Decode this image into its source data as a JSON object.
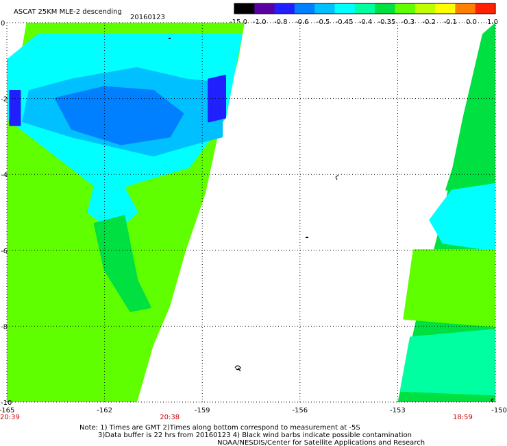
{
  "header": {
    "title": "ASCAT 25KM MLE-2 descending",
    "date": "20160123"
  },
  "colorbar": {
    "labels": [
      "-15.0",
      "-1.0",
      "-0.8",
      "-0.6",
      "-0.5",
      "-0.45",
      "-0.4",
      "-0.35",
      "-0.3",
      "-0.2",
      "-0.1",
      "0.0",
      "1.0"
    ],
    "colors": [
      "#000000",
      "#5a00a0",
      "#2020ff",
      "#0080ff",
      "#00c0ff",
      "#00ffff",
      "#00ffa0",
      "#00e040",
      "#60ff00",
      "#c0ff00",
      "#ffff00",
      "#ff8000",
      "#ff2000"
    ]
  },
  "chart_data": {
    "type": "heatmap",
    "title": "ASCAT 25KM MLE-2 descending",
    "date": "20160123",
    "x_ticks": [
      "-165",
      "-162",
      "-159",
      "-156",
      "-153",
      "-150"
    ],
    "y_ticks": [
      "0",
      "-2",
      "-4",
      "-6",
      "-8",
      "-10"
    ],
    "xlim": [
      -165,
      -150
    ],
    "ylim": [
      -10,
      0
    ],
    "grid": true,
    "time_labels": [
      {
        "lon": -165,
        "text": "20:39"
      },
      {
        "lon": -160,
        "text": "20:38"
      },
      {
        "lon": -151,
        "text": "18:59"
      }
    ],
    "swaths": [
      {
        "name": "west",
        "polygon": [
          [
            -164.4,
            0
          ],
          [
            -157.7,
            0
          ],
          [
            -157.9,
            -1.0
          ],
          [
            -158.4,
            -2.5
          ],
          [
            -158.9,
            -4.5
          ],
          [
            -159.5,
            -6.0
          ],
          [
            -160.0,
            -7.5
          ],
          [
            -160.5,
            -8.5
          ],
          [
            -161.0,
            -10.0
          ],
          [
            -165,
            -10.0
          ],
          [
            -165,
            -2.0
          ],
          [
            -164.6,
            -1.0
          ]
        ],
        "base_value": -0.3,
        "regions": [
          {
            "polygon": [
              [
                -164.0,
                -0.3
              ],
              [
                -157.8,
                -0.3
              ],
              [
                -158.3,
                -2.5
              ],
              [
                -159.4,
                -3.8
              ],
              [
                -161.0,
                -4.2
              ],
              [
                -162.0,
                -4.5
              ],
              [
                -163.5,
                -3.5
              ],
              [
                -165,
                -2.5
              ],
              [
                -165,
                -1.0
              ]
            ],
            "value": -0.45
          },
          {
            "polygon": [
              [
                -164.3,
                -1.8
              ],
              [
                -163.0,
                -1.5
              ],
              [
                -161.0,
                -1.2
              ],
              [
                -159.5,
                -1.5
              ],
              [
                -158.4,
                -1.6
              ],
              [
                -158.4,
                -3.0
              ],
              [
                -159.3,
                -3.2
              ],
              [
                -160.5,
                -3.5
              ],
              [
                -162.0,
                -3.2
              ],
              [
                -163.0,
                -3.0
              ],
              [
                -164.5,
                -2.6
              ]
            ],
            "value": -0.5
          },
          {
            "polygon": [
              [
                -163.5,
                -2.0
              ],
              [
                -162.0,
                -1.7
              ],
              [
                -160.5,
                -1.8
              ],
              [
                -159.6,
                -2.4
              ],
              [
                -160.0,
                -3.0
              ],
              [
                -161.5,
                -3.2
              ],
              [
                -163.0,
                -2.8
              ]
            ],
            "value": -0.6
          },
          {
            "polygon": [
              [
                -158.8,
                -1.5
              ],
              [
                -158.3,
                -1.4
              ],
              [
                -158.3,
                -2.5
              ],
              [
                -158.8,
                -2.6
              ]
            ],
            "value": -0.8
          },
          {
            "polygon": [
              [
                -164.9,
                -1.8
              ],
              [
                -164.6,
                -1.8
              ],
              [
                -164.6,
                -2.7
              ],
              [
                -164.9,
                -2.7
              ]
            ],
            "value": -0.8
          },
          {
            "polygon": [
              [
                -162.3,
                -4.3
              ],
              [
                -161.5,
                -4.2
              ],
              [
                -161.0,
                -5.0
              ],
              [
                -161.7,
                -5.5
              ],
              [
                -162.5,
                -5.0
              ]
            ],
            "value": -0.45
          },
          {
            "polygon": [
              [
                -162.3,
                -5.3
              ],
              [
                -161.4,
                -5.1
              ],
              [
                -161.0,
                -6.8
              ],
              [
                -160.6,
                -7.5
              ],
              [
                -161.2,
                -7.6
              ],
              [
                -162.0,
                -6.5
              ]
            ],
            "value": -0.35
          }
        ]
      },
      {
        "name": "east",
        "polygon": [
          [
            -150.4,
            -0.3
          ],
          [
            -150.0,
            0
          ],
          [
            -150.0,
            -10.0
          ],
          [
            -153.0,
            -10.0
          ],
          [
            -152.4,
            -7.7
          ],
          [
            -151.6,
            -5.0
          ],
          [
            -151.0,
            -2.5
          ]
        ],
        "base_value": -0.35,
        "regions": [
          {
            "polygon": [
              [
                -151.3,
                -4.4
              ],
              [
                -150.0,
                -4.0
              ],
              [
                -150.0,
                -6.0
              ],
              [
                -151.6,
                -5.8
              ],
              [
                -152.0,
                -5.2
              ]
            ],
            "value": -0.45
          },
          {
            "polygon": [
              [
                -150.9,
                -2.8
              ],
              [
                -150.0,
                -1.5
              ],
              [
                -150.0,
                -4.2
              ],
              [
                -151.5,
                -4.4
              ]
            ],
            "value": -0.35
          },
          {
            "polygon": [
              [
                -152.6,
                -8.3
              ],
              [
                -150.0,
                -8.1
              ],
              [
                -150.0,
                -9.8
              ],
              [
                -152.9,
                -9.7
              ]
            ],
            "value": -0.4
          },
          {
            "polygon": [
              [
                -152.5,
                -6.0
              ],
              [
                -150.0,
                -6.0
              ],
              [
                -150.0,
                -8.0
              ],
              [
                -152.8,
                -7.8
              ]
            ],
            "value": -0.3
          }
        ]
      }
    ]
  },
  "notes": {
    "line1": "Note: 1) Times are GMT 2)Times along bottom correspond to measurement at -5S",
    "line2": "3)Data buffer is 22 hrs from 20160123 4) Black wind barbs indicate possible contamination",
    "line3": "NOAA/NESDIS/Center for Satellite Applications and Research"
  }
}
